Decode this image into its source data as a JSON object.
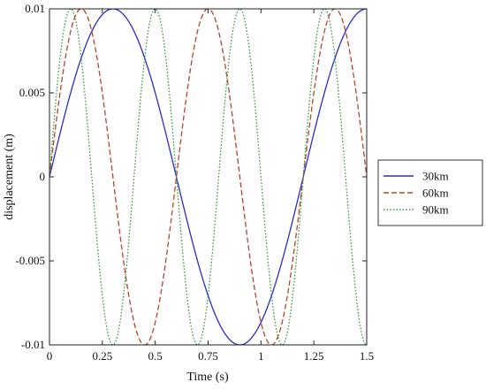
{
  "chart_data": {
    "type": "line",
    "title": "",
    "xlabel": "Time (s)",
    "ylabel": "displacement (m)",
    "xlim": [
      0,
      1.5
    ],
    "ylim": [
      -0.01,
      0.01
    ],
    "grid": false,
    "legend_position": "right",
    "x_ticks": [
      0,
      0.25,
      0.5,
      0.75,
      1,
      1.25,
      1.5
    ],
    "x_tick_labels": [
      "0",
      "0.25",
      "0.5",
      "0.75",
      "1",
      "1.25",
      "1.5"
    ],
    "y_ticks": [
      -0.01,
      -0.005,
      0,
      0.005,
      0.01
    ],
    "y_tick_labels": [
      "-0.01",
      "-0.005",
      "0",
      "0.005",
      "0.01"
    ],
    "series": [
      {
        "name": "30km",
        "color": "#2b2bc8",
        "dash": "solid",
        "amplitude": 0.01,
        "period": 1.2,
        "x": [
          0,
          0.15,
          0.3,
          0.45,
          0.6,
          0.75,
          0.9,
          1.0,
          1.05,
          1.2,
          1.35,
          1.5
        ],
        "y": [
          0,
          0.00707,
          0.01,
          0.00707,
          0,
          -0.00707,
          -0.01,
          -0.00866,
          -0.00707,
          0,
          0.00707,
          0.01
        ]
      },
      {
        "name": "60km",
        "color": "#b5442c",
        "dash": "dashed",
        "amplitude": 0.01,
        "period": 0.6,
        "x": [
          0,
          0.075,
          0.15,
          0.3,
          0.45,
          0.6,
          0.75,
          0.9,
          1.05,
          1.2,
          1.35,
          1.5
        ],
        "y": [
          0,
          0.00707,
          0.01,
          0,
          -0.01,
          0,
          0.01,
          0,
          -0.01,
          0,
          0.01,
          0
        ]
      },
      {
        "name": "90km",
        "color": "#3f9a3f",
        "dash": "dotted",
        "amplitude": 0.01,
        "period": 0.4,
        "x": [
          0,
          0.1,
          0.2,
          0.3,
          0.4,
          0.5,
          0.6,
          0.7,
          0.8,
          0.9,
          1.0,
          1.1,
          1.2,
          1.3,
          1.4,
          1.5
        ],
        "y": [
          0,
          0.01,
          0,
          -0.01,
          0,
          0.01,
          0,
          -0.01,
          0,
          0.01,
          0,
          -0.01,
          0,
          0.01,
          0,
          -0.01
        ]
      }
    ]
  }
}
